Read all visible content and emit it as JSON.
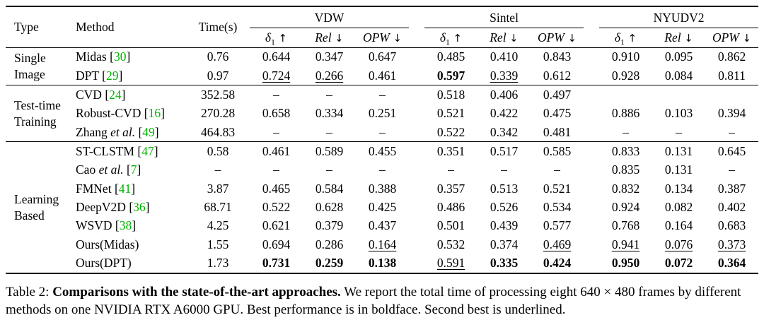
{
  "colors": {
    "citation_green": "#00b400",
    "text": "#000000",
    "rule": "#000000",
    "background": "#ffffff"
  },
  "header": {
    "type": "Type",
    "method": "Method",
    "time": "Time(s)",
    "groups": [
      "VDW",
      "Sintel",
      "NYUDV2"
    ],
    "metrics": [
      {
        "sym": "δ",
        "sub": "1",
        "arrow": "↑"
      },
      {
        "sym": "Rel",
        "sub": "",
        "arrow": "↓"
      },
      {
        "sym": "OPW",
        "sub": "",
        "arrow": "↓"
      }
    ]
  },
  "body": [
    {
      "type": "Single\nImage",
      "rows": [
        {
          "method": "Midas",
          "em": "",
          "cite": "30",
          "time": "0.76",
          "cells": [
            [
              "0.644",
              ""
            ],
            [
              "0.347",
              ""
            ],
            [
              "0.647",
              ""
            ],
            [
              "0.485",
              ""
            ],
            [
              "0.410",
              ""
            ],
            [
              "0.843",
              ""
            ],
            [
              "0.910",
              ""
            ],
            [
              "0.095",
              ""
            ],
            [
              "0.862",
              ""
            ]
          ]
        },
        {
          "method": "DPT",
          "em": "",
          "cite": "29",
          "time": "0.97",
          "cells": [
            [
              "0.724",
              "u"
            ],
            [
              "0.266",
              "u"
            ],
            [
              "0.461",
              ""
            ],
            [
              "0.597",
              "b"
            ],
            [
              "0.339",
              "u"
            ],
            [
              "0.612",
              ""
            ],
            [
              "0.928",
              ""
            ],
            [
              "0.084",
              ""
            ],
            [
              "0.811",
              ""
            ]
          ]
        }
      ]
    },
    {
      "type": "Test-time\nTraining",
      "rows": [
        {
          "method": "CVD",
          "em": "",
          "cite": "24",
          "time": "352.58",
          "cells": [
            [
              "–",
              ""
            ],
            [
              "–",
              ""
            ],
            [
              "–",
              ""
            ],
            [
              "0.518",
              ""
            ],
            [
              "0.406",
              ""
            ],
            [
              "0.497",
              ""
            ],
            [
              "",
              ""
            ],
            [
              "",
              ""
            ],
            [
              "",
              ""
            ]
          ]
        },
        {
          "method": "Robust-CVD",
          "em": "",
          "cite": "16",
          "time": "270.28",
          "cells": [
            [
              "0.658",
              ""
            ],
            [
              "0.334",
              ""
            ],
            [
              "0.251",
              ""
            ],
            [
              "0.521",
              ""
            ],
            [
              "0.422",
              ""
            ],
            [
              "0.475",
              ""
            ],
            [
              "0.886",
              ""
            ],
            [
              "0.103",
              ""
            ],
            [
              "0.394",
              ""
            ]
          ]
        },
        {
          "method": "Zhang ",
          "em": "et al.",
          "cite": "49",
          "time": "464.83",
          "cells": [
            [
              "–",
              ""
            ],
            [
              "–",
              ""
            ],
            [
              "–",
              ""
            ],
            [
              "0.522",
              ""
            ],
            [
              "0.342",
              ""
            ],
            [
              "0.481",
              ""
            ],
            [
              "–",
              ""
            ],
            [
              "–",
              ""
            ],
            [
              "–",
              ""
            ]
          ]
        }
      ]
    },
    {
      "type": "Learning\nBased",
      "rows": [
        {
          "method": "ST-CLSTM",
          "em": "",
          "cite": "47",
          "time": "0.58",
          "cells": [
            [
              "0.461",
              ""
            ],
            [
              "0.589",
              ""
            ],
            [
              "0.455",
              ""
            ],
            [
              "0.351",
              ""
            ],
            [
              "0.517",
              ""
            ],
            [
              "0.585",
              ""
            ],
            [
              "0.833",
              ""
            ],
            [
              "0.131",
              ""
            ],
            [
              "0.645",
              ""
            ]
          ]
        },
        {
          "method": "Cao ",
          "em": "et al.",
          "cite": "7",
          "time": "–",
          "cells": [
            [
              "–",
              ""
            ],
            [
              "–",
              ""
            ],
            [
              "–",
              ""
            ],
            [
              "–",
              ""
            ],
            [
              "–",
              ""
            ],
            [
              "–",
              ""
            ],
            [
              "0.835",
              ""
            ],
            [
              "0.131",
              ""
            ],
            [
              "–",
              ""
            ]
          ]
        },
        {
          "method": "FMNet",
          "em": "",
          "cite": "41",
          "time": "3.87",
          "cells": [
            [
              "0.465",
              ""
            ],
            [
              "0.584",
              ""
            ],
            [
              "0.388",
              ""
            ],
            [
              "0.357",
              ""
            ],
            [
              "0.513",
              ""
            ],
            [
              "0.521",
              ""
            ],
            [
              "0.832",
              ""
            ],
            [
              "0.134",
              ""
            ],
            [
              "0.387",
              ""
            ]
          ]
        },
        {
          "method": "DeepV2D",
          "em": "",
          "cite": "36",
          "time": "68.71",
          "cells": [
            [
              "0.522",
              ""
            ],
            [
              "0.628",
              ""
            ],
            [
              "0.425",
              ""
            ],
            [
              "0.486",
              ""
            ],
            [
              "0.526",
              ""
            ],
            [
              "0.534",
              ""
            ],
            [
              "0.924",
              ""
            ],
            [
              "0.082",
              ""
            ],
            [
              "0.402",
              ""
            ]
          ]
        },
        {
          "method": "WSVD",
          "em": "",
          "cite": "38",
          "time": "4.25",
          "cells": [
            [
              "0.621",
              ""
            ],
            [
              "0.379",
              ""
            ],
            [
              "0.437",
              ""
            ],
            [
              "0.501",
              ""
            ],
            [
              "0.439",
              ""
            ],
            [
              "0.577",
              ""
            ],
            [
              "0.768",
              ""
            ],
            [
              "0.164",
              ""
            ],
            [
              "0.683",
              ""
            ]
          ]
        },
        {
          "method": "Ours(Midas)",
          "em": "",
          "cite": "",
          "time": "1.55",
          "cells": [
            [
              "0.694",
              ""
            ],
            [
              "0.286",
              ""
            ],
            [
              "0.164",
              "u"
            ],
            [
              "0.532",
              ""
            ],
            [
              "0.374",
              ""
            ],
            [
              "0.469",
              "u"
            ],
            [
              "0.941",
              "u"
            ],
            [
              "0.076",
              "u"
            ],
            [
              "0.373",
              "u"
            ]
          ]
        },
        {
          "method": "Ours(DPT)",
          "em": "",
          "cite": "",
          "time": "1.73",
          "cells": [
            [
              "0.731",
              "b"
            ],
            [
              "0.259",
              "b"
            ],
            [
              "0.138",
              "b"
            ],
            [
              "0.591",
              "u"
            ],
            [
              "0.335",
              "b"
            ],
            [
              "0.424",
              "b"
            ],
            [
              "0.950",
              "b"
            ],
            [
              "0.072",
              "b"
            ],
            [
              "0.364",
              "b"
            ]
          ]
        }
      ]
    }
  ],
  "caption": {
    "label": "Table 2: ",
    "bold_title": "Comparisons with the state-of-the-art approaches.",
    "rest": " We report the total time of processing eight 640 × 480 frames by different methods on one NVIDIA RTX A6000 GPU. Best performance is in boldface. Second best is underlined."
  }
}
